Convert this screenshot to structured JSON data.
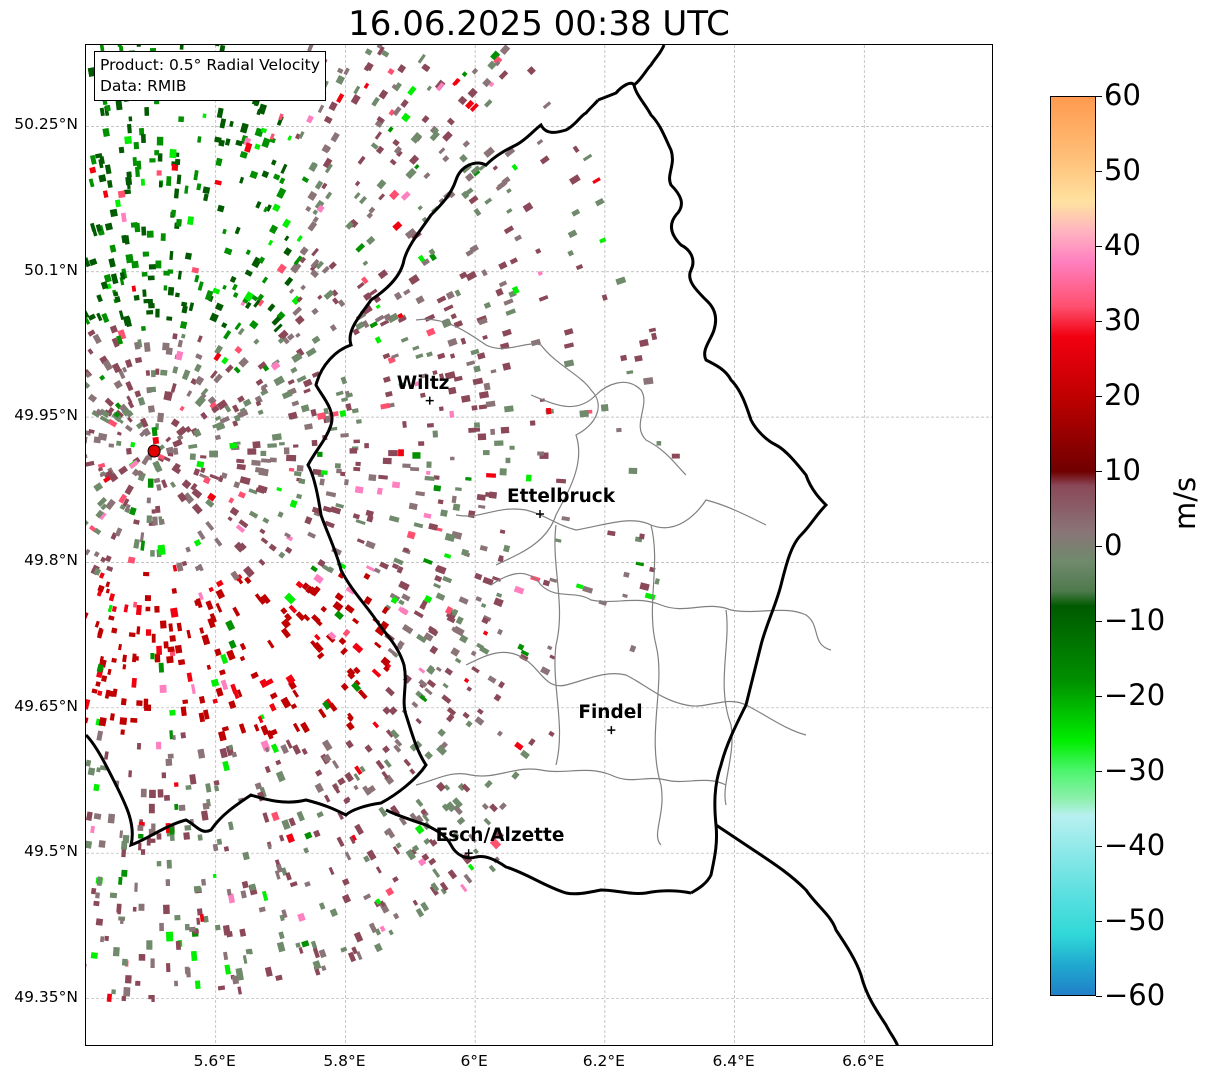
{
  "title": "16.06.2025 00:38 UTC",
  "infobox": {
    "line1": "Product: 0.5° Radial Velocity",
    "line2": "Data: RMIB"
  },
  "axes": {
    "lat_ticks": [
      "50.25°N",
      "50.1°N",
      "49.95°N",
      "49.8°N",
      "49.65°N",
      "49.5°N",
      "49.35°N"
    ],
    "lon_ticks": [
      "5.6°E",
      "5.8°E",
      "6°E",
      "6.2°E",
      "6.4°E",
      "6.6°E"
    ],
    "lat_values": [
      50.25,
      50.1,
      49.95,
      49.8,
      49.65,
      49.5,
      49.35
    ],
    "lon_values": [
      5.6,
      5.8,
      6.0,
      6.2,
      6.4,
      6.6
    ],
    "lon_range": [
      5.4,
      6.8
    ],
    "lat_range": [
      49.3,
      50.3
    ],
    "grid": true
  },
  "cities": [
    {
      "name": "Wiltz",
      "lon": 5.93,
      "lat": 49.967
    },
    {
      "name": "Ettelbruck",
      "lon": 6.1,
      "lat": 49.85
    },
    {
      "name": "Findel",
      "lon": 6.21,
      "lat": 49.627
    },
    {
      "name": "Esch/Alzette",
      "lon": 5.99,
      "lat": 49.5
    }
  ],
  "radar": {
    "lon": 5.505,
    "lat": 49.915
  },
  "colorbar": {
    "unit": "m/s",
    "min": -60,
    "max": 60,
    "tick_labels": [
      "60",
      "50",
      "40",
      "30",
      "20",
      "10",
      "0",
      "−10",
      "−20",
      "−30",
      "−40",
      "−50",
      "−60"
    ],
    "tick_values": [
      60,
      50,
      40,
      30,
      20,
      10,
      0,
      -10,
      -20,
      -30,
      -40,
      -50,
      -60
    ],
    "color_stops": [
      {
        "v": 60,
        "c": "#ff9a4f"
      },
      {
        "v": 52,
        "c": "#ffbf78"
      },
      {
        "v": 46,
        "c": "#ffe2a0"
      },
      {
        "v": 42,
        "c": "#ffb3c0"
      },
      {
        "v": 38,
        "c": "#ff80c0"
      },
      {
        "v": 32,
        "c": "#ff5070"
      },
      {
        "v": 28,
        "c": "#f20010"
      },
      {
        "v": 20,
        "c": "#c00000"
      },
      {
        "v": 10,
        "c": "#700000"
      },
      {
        "v": 8,
        "c": "#8a4858"
      },
      {
        "v": 2,
        "c": "#8a7478"
      },
      {
        "v": -2,
        "c": "#708a6c"
      },
      {
        "v": -6,
        "c": "#4f7a4d"
      },
      {
        "v": -8,
        "c": "#005a00"
      },
      {
        "v": -18,
        "c": "#009000"
      },
      {
        "v": -26,
        "c": "#00ee00"
      },
      {
        "v": -30,
        "c": "#4cf56c"
      },
      {
        "v": -34,
        "c": "#90f0b0"
      },
      {
        "v": -36,
        "c": "#b8f0f0"
      },
      {
        "v": -46,
        "c": "#60e0e0"
      },
      {
        "v": -52,
        "c": "#30d8d8"
      },
      {
        "v": -56,
        "c": "#20a8d0"
      },
      {
        "v": -60,
        "c": "#2080c8"
      }
    ]
  },
  "colors": {
    "border": "#000000",
    "canton": "#808080",
    "grid": "#b0b0b0",
    "radar_marker": "#e00000"
  }
}
